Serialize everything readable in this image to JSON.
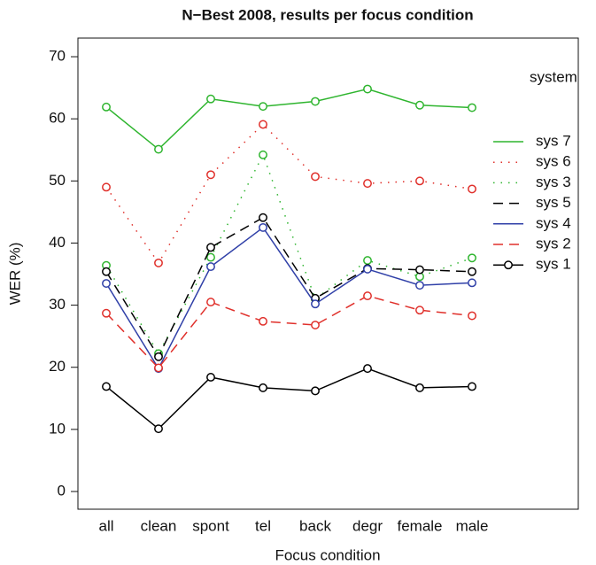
{
  "chart_data": {
    "type": "line",
    "title": "N−Best 2008, results per focus condition",
    "x_label": "Focus condition",
    "y_label": "WER (%)",
    "categories": [
      "all",
      "clean",
      "spont",
      "tel",
      "back",
      "degr",
      "female",
      "male"
    ],
    "ylim": [
      -2.85,
      73
    ],
    "yticks": [
      0,
      10,
      20,
      30,
      40,
      50,
      60,
      70
    ],
    "legend_title": "system",
    "legend_position": "right",
    "series": [
      {
        "name": "sys 7",
        "color": "#2fb52f",
        "linestyle": "solid",
        "values": [
          61.9,
          55.1,
          63.2,
          62.0,
          62.8,
          64.8,
          62.2,
          61.8
        ]
      },
      {
        "name": "sys 6",
        "color": "#e0302b",
        "linestyle": "dotted",
        "values": [
          49.0,
          36.8,
          51.0,
          59.1,
          50.7,
          49.6,
          50.0,
          48.7
        ]
      },
      {
        "name": "sys 3",
        "color": "#2fb52f",
        "linestyle": "dotted",
        "values": [
          36.4,
          22.2,
          37.7,
          54.2,
          31.0,
          37.2,
          34.6,
          37.6
        ]
      },
      {
        "name": "sys 5",
        "color": "#000000",
        "linestyle": "dashed",
        "values": [
          35.4,
          21.7,
          39.3,
          44.1,
          31.1,
          35.9,
          35.7,
          35.4
        ]
      },
      {
        "name": "sys 4",
        "color": "#3040a8",
        "linestyle": "solid",
        "values": [
          33.5,
          19.8,
          36.2,
          42.5,
          30.2,
          35.8,
          33.2,
          33.6
        ]
      },
      {
        "name": "sys 2",
        "color": "#e0302b",
        "linestyle": "dashed",
        "values": [
          28.7,
          19.9,
          30.5,
          27.4,
          26.8,
          31.5,
          29.2,
          28.3
        ]
      },
      {
        "name": "sys 1",
        "color": "#000000",
        "linestyle": "solid",
        "legend_marker": true,
        "values": [
          16.9,
          10.1,
          18.4,
          16.7,
          16.2,
          19.8,
          16.7,
          16.9
        ]
      }
    ]
  }
}
